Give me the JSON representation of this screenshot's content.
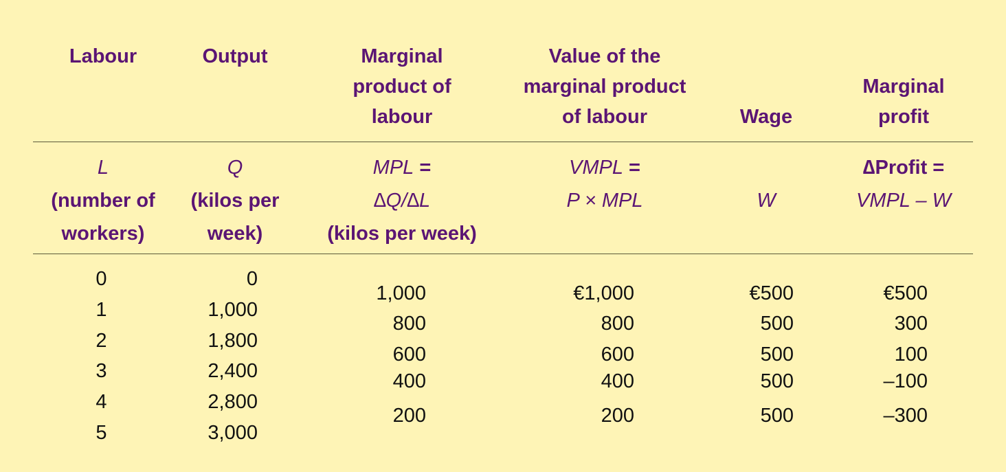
{
  "headers": {
    "labour": "Labour",
    "output": "Output",
    "mpl": [
      "Marginal",
      "product of",
      "labour"
    ],
    "vmpl": [
      "Value of the",
      "marginal product",
      "of labour"
    ],
    "wage": "Wage",
    "profit": [
      "Marginal",
      "profit"
    ]
  },
  "symbols": {
    "labour": [
      "L",
      "(number of",
      "workers)"
    ],
    "output": [
      "Q",
      "(kilos per",
      "week)"
    ],
    "mpl_var": "MPL",
    "mpl_eq": " =",
    "mpl_formula": "∆Q/∆L",
    "mpl_unit": "(kilos per week)",
    "vmpl_var": "VMPL",
    "vmpl_eq": " =",
    "vmpl_formula": "P × MPL",
    "wage": "W",
    "profit_label": "∆Profit =",
    "profit_formula": "VMPL – W"
  },
  "rows": {
    "labour": [
      "0",
      "1",
      "2",
      "3",
      "4",
      "5"
    ],
    "output": [
      "0",
      "1,000",
      "1,800",
      "2,400",
      "2,800",
      "3,000"
    ],
    "mpl": [
      "1,000",
      "800",
      "600",
      "400",
      "200"
    ],
    "vmpl": [
      "€1,000",
      "800",
      "600",
      "400",
      "200"
    ],
    "wage": [
      "€500",
      "500",
      "500",
      "500",
      "500"
    ],
    "profit": [
      "€500",
      "300",
      "100",
      "–100",
      "–300"
    ]
  },
  "colors": {
    "background": "#fef4b6",
    "header_text": "#5b1574",
    "body_text": "#111111",
    "rule": "#5a5a3a"
  }
}
